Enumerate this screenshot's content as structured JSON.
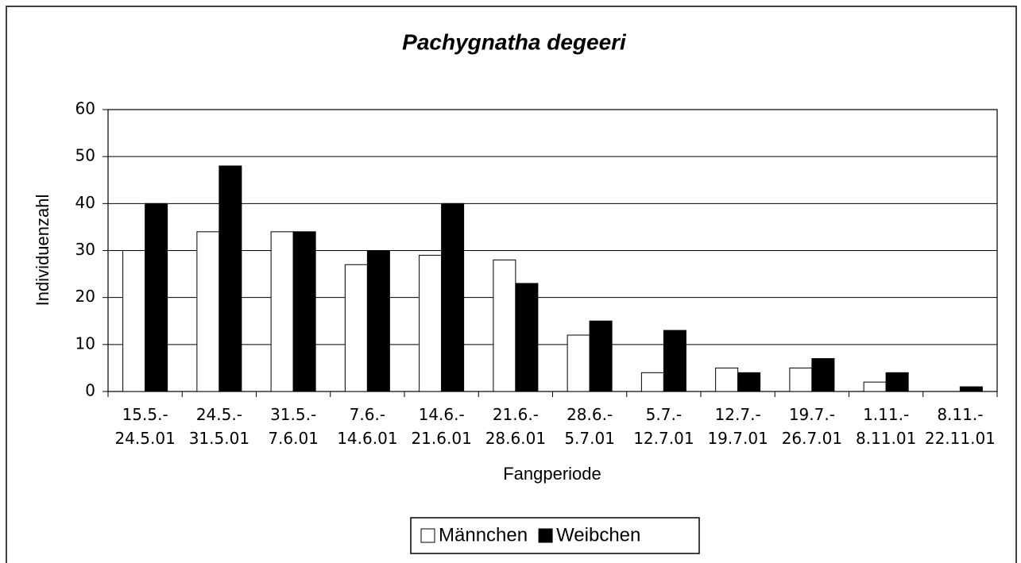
{
  "chart_data": {
    "type": "bar",
    "title": "Pachygnatha degeeri",
    "x_label": "Fangperiode",
    "y_label": "Individuenzahl",
    "categories": [
      "15.5.-\n24.5.01",
      "24.5.-\n31.5.01",
      "31.5.-\n7.6.01",
      "7.6.-\n14.6.01",
      "14.6.-\n21.6.01",
      "21.6.-\n28.6.01",
      "28.6.-\n5.7.01",
      "5.7.-\n12.7.01",
      "12.7.-\n19.7.01",
      "19.7.-\n26.7.01",
      "1.11.-\n8.11.01",
      "8.11.-\n22.11.01"
    ],
    "series": [
      {
        "name": "Männchen",
        "color": "#ffffff",
        "values": [
          30,
          34,
          34,
          27,
          29,
          28,
          12,
          4,
          5,
          5,
          2,
          0
        ]
      },
      {
        "name": "Weibchen",
        "color": "#000000",
        "values": [
          40,
          48,
          34,
          30,
          40,
          23,
          15,
          13,
          4,
          7,
          4,
          1
        ]
      }
    ],
    "ylim": [
      0,
      60
    ],
    "yticks": [
      0,
      10,
      20,
      30,
      40,
      50,
      60
    ],
    "grid": true,
    "legend": "bottom"
  }
}
